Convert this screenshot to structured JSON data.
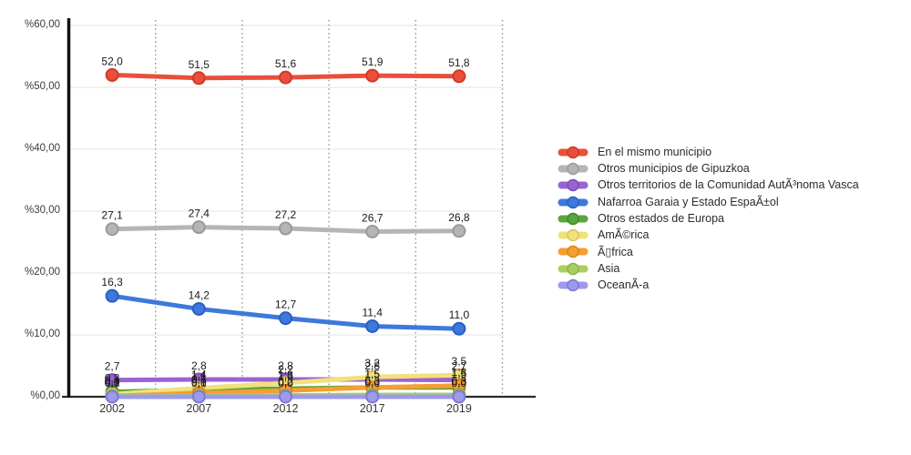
{
  "chart_data": {
    "type": "line",
    "title": "",
    "xlabel": "",
    "ylabel": "",
    "ylim": [
      0,
      60
    ],
    "grid": {
      "horizontal": true,
      "vertical_dotted": true
    },
    "legend_position": "right",
    "categories": [
      "2002",
      "2007",
      "2012",
      "2017",
      "2019"
    ],
    "y_axis_ticks": [
      {
        "value": 0,
        "label": "%0,00"
      },
      {
        "value": 10,
        "label": "%10,00"
      },
      {
        "value": 20,
        "label": "%20,00"
      },
      {
        "value": 30,
        "label": "%30,00"
      },
      {
        "value": 40,
        "label": "%40,00"
      },
      {
        "value": 50,
        "label": "%50,00"
      },
      {
        "value": 60,
        "label": "%60,00"
      }
    ],
    "series": [
      {
        "name": "En el mismo municipio",
        "color": "#E8503B",
        "edge": "#D23A26",
        "values": [
          52.0,
          51.5,
          51.6,
          51.9,
          51.8
        ],
        "labels": [
          "52,0",
          "51,5",
          "51,6",
          "51,9",
          "51,8"
        ]
      },
      {
        "name": "Otros municipios de Gipuzkoa",
        "color": "#B5B5B5",
        "edge": "#9A9A9A",
        "values": [
          27.1,
          27.4,
          27.2,
          26.7,
          26.8
        ],
        "labels": [
          "27,1",
          "27,4",
          "27,2",
          "26,7",
          "26,8"
        ]
      },
      {
        "name": "Otros territorios de la Comunidad AutÃ³noma Vasca",
        "color": "#9A64D0",
        "edge": "#7E4BB4",
        "values": [
          2.7,
          2.8,
          2.8,
          2.8,
          2.7
        ],
        "labels": [
          "2,7",
          "2,8",
          "2,8",
          "2,8",
          "2,7"
        ]
      },
      {
        "name": "Nafarroa Garaia y Estado EspaÃ±ol",
        "color": "#3E78DC",
        "edge": "#2B5EC0",
        "values": [
          16.3,
          14.2,
          12.7,
          11.4,
          11.0
        ],
        "labels": [
          "16,3",
          "14,2",
          "12,7",
          "11,4",
          "11,0"
        ]
      },
      {
        "name": "Otros estados de Europa",
        "color": "#59A63C",
        "edge": "#45862B",
        "values": [
          0.8,
          1.1,
          1.3,
          1.5,
          1.5
        ],
        "labels": [
          "0,8",
          "1,1",
          "1,3",
          "1,5",
          "1,5"
        ]
      },
      {
        "name": "AmÃ©rica",
        "color": "#F1E17C",
        "edge": "#D9C55C",
        "values": [
          0.4,
          1.4,
          2.2,
          3.2,
          3.5
        ],
        "labels": [
          "0,4",
          "1,4",
          "2,2",
          "3,2",
          "3,5"
        ]
      },
      {
        "name": "Ã▯frica",
        "color": "#F59E32",
        "edge": "#DA8517",
        "values": [
          0.1,
          0.6,
          1.0,
          1.5,
          1.8
        ],
        "labels": [
          "0,1",
          "0,6",
          "1,0",
          "1,5",
          "1,8"
        ]
      },
      {
        "name": "Asia",
        "color": "#A9CE62",
        "edge": "#8DB246",
        "values": [
          0.1,
          0.1,
          0.2,
          0.3,
          0.3
        ],
        "labels": [
          "0,1",
          "0,1",
          "0,2",
          "0,3",
          "0,3"
        ]
      },
      {
        "name": "OceanÃ-a",
        "color": "#9D99EC",
        "edge": "#7E7AD2",
        "values": [
          0.0,
          0.0,
          0.0,
          0.0,
          0.0
        ],
        "labels": [
          "0,0",
          "0,0",
          "0,0",
          "0,0",
          "0,0"
        ]
      }
    ]
  }
}
